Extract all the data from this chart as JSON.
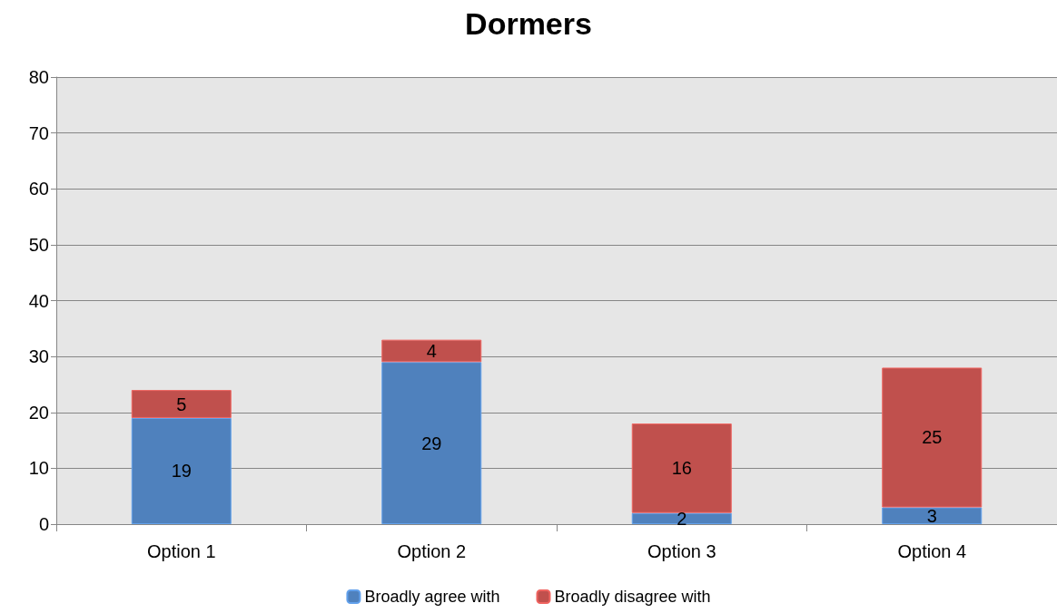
{
  "chart_data": {
    "type": "bar",
    "title": "Dormers",
    "categories": [
      "Option 1",
      "Option 2",
      "Option 3",
      "Option 4"
    ],
    "series": [
      {
        "name": "Broadly agree with",
        "color": "#4f81bd",
        "values": [
          19,
          29,
          2,
          3
        ]
      },
      {
        "name": "Broadly disagree with",
        "color": "#c0504d",
        "values": [
          5,
          4,
          16,
          25
        ]
      }
    ],
    "stacked": true,
    "ylim": [
      0,
      80
    ],
    "yticks": [
      0,
      10,
      20,
      30,
      40,
      50,
      60,
      70,
      80
    ],
    "grid": "y",
    "legend": "bottom",
    "data_labels": true
  }
}
